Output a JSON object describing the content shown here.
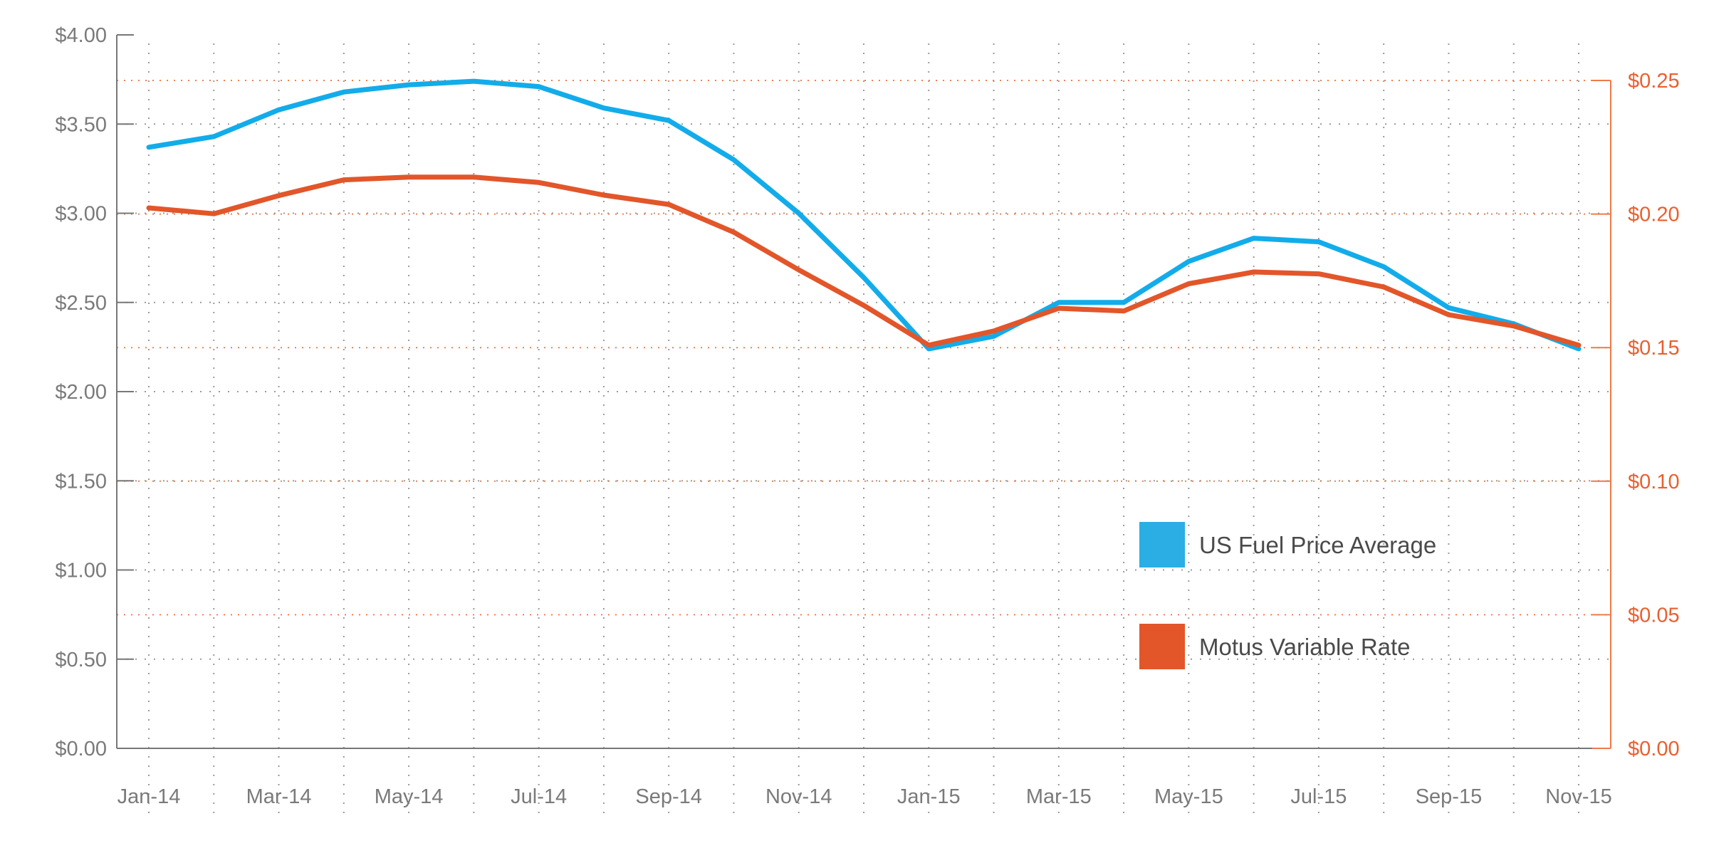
{
  "chart_data": {
    "type": "line",
    "title": "",
    "xlabel": "",
    "ylabel": "",
    "categories": [
      "Jan-14",
      "Feb-14",
      "Mar-14",
      "Apr-14",
      "May-14",
      "Jun-14",
      "Jul-14",
      "Aug-14",
      "Sep-14",
      "Oct-14",
      "Nov-14",
      "Dec-14",
      "Jan-15",
      "Feb-15",
      "Mar-15",
      "Apr-15",
      "May-15",
      "Jun-15",
      "Jul-15",
      "Aug-15",
      "Sep-15",
      "Oct-15",
      "Nov-15"
    ],
    "x_tick_labels": [
      "Jan-14",
      "Mar-14",
      "May-14",
      "Jul-14",
      "Sep-14",
      "Nov-14",
      "Jan-15",
      "Mar-15",
      "May-15",
      "Jul-15",
      "Sep-15",
      "Nov-15"
    ],
    "y_left": {
      "ylim": [
        0,
        4
      ],
      "ticks": [
        0,
        0.5,
        1,
        1.5,
        2,
        2.5,
        3,
        3.5,
        4
      ],
      "tick_labels": [
        "$0.00",
        "$0.50",
        "$1.00",
        "$1.50",
        "$2.00",
        "$2.50",
        "$3.00",
        "$3.50",
        "$4.00"
      ]
    },
    "y_right": {
      "ylim": [
        0,
        0.25
      ],
      "ticks": [
        0,
        0.05,
        0.1,
        0.15,
        0.2,
        0.25
      ],
      "tick_labels": [
        "$0.00",
        "$0.05",
        "$0.10",
        "$0.15",
        "$0.20",
        "$0.25"
      ]
    },
    "series": [
      {
        "name": "US Fuel Price Average",
        "axis": "left",
        "color": "#12acea",
        "values": [
          3.37,
          3.43,
          3.58,
          3.68,
          3.72,
          3.74,
          3.71,
          3.59,
          3.52,
          3.3,
          3.0,
          2.64,
          2.24,
          2.31,
          2.5,
          2.5,
          2.73,
          2.86,
          2.84,
          2.7,
          2.47,
          2.38,
          2.24
        ]
      },
      {
        "name": "Motus Variable Rate",
        "axis": "right",
        "color": "#e2562a",
        "values": [
          0.2023,
          0.2001,
          0.2069,
          0.2128,
          0.2138,
          0.2138,
          0.2118,
          0.2071,
          0.2036,
          0.1932,
          0.1791,
          0.1658,
          0.1509,
          0.1562,
          0.1647,
          0.1637,
          0.1739,
          0.1783,
          0.1776,
          0.1727,
          0.1623,
          0.1581,
          0.1509
        ]
      }
    ],
    "grid": true,
    "legend": {
      "placement": "bottom-right",
      "items": [
        {
          "label": "US Fuel Price Average",
          "color": "#2aaee4"
        },
        {
          "label": "Motus Variable Rate",
          "color": "#e2562a"
        }
      ]
    },
    "colors": {
      "left_axis": "#7a7a7a",
      "right_axis": "#ee7a4a",
      "grid_gray": "#9a9a9a",
      "grid_orange": "#f08050"
    }
  }
}
